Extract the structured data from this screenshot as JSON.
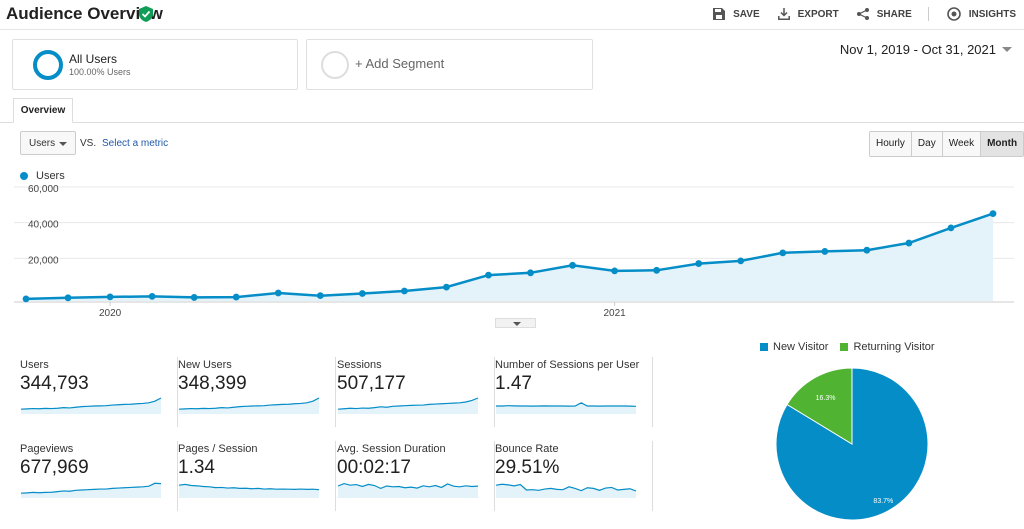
{
  "header": {
    "title": "Audience Overview",
    "actions": {
      "save": "SAVE",
      "export": "EXPORT",
      "share": "SHARE",
      "insights": "INSIGHTS"
    }
  },
  "segments": {
    "active": {
      "name": "All Users",
      "subtitle": "100.00% Users"
    },
    "add_label": "+ Add Segment"
  },
  "date_range": "Nov 1, 2019 - Oct 31, 2021",
  "tabs": {
    "overview": "Overview"
  },
  "controls": {
    "metric": "Users",
    "vs": "VS.",
    "select_metric": "Select a metric",
    "granularity": [
      "Hourly",
      "Day",
      "Week",
      "Month"
    ],
    "granularity_active": "Month"
  },
  "chart_data": {
    "type": "area",
    "series": [
      {
        "name": "Users",
        "values": [
          1200,
          1800,
          2300,
          2600,
          2000,
          2200,
          4500,
          3000,
          4200,
          5600,
          7800,
          14500,
          15800,
          20000,
          16900,
          17200,
          21000,
          22500,
          27000,
          27800,
          28500,
          32500,
          41000,
          49000
        ]
      }
    ],
    "x_tick_labels": [
      "2020",
      "2021"
    ],
    "y_tick_labels": [
      "20,000",
      "40,000",
      "60,000"
    ],
    "yticks": [
      20000,
      40000,
      60000
    ],
    "ylim": [
      0,
      60000
    ],
    "color": "#058dc7",
    "fill": "#e4f2fa",
    "grid": true,
    "legend": "top-left"
  },
  "metrics": [
    {
      "label": "Users",
      "value": "344,793",
      "spark": [
        3,
        3.2,
        3.4,
        3.3,
        3.5,
        3.4,
        3.6,
        4,
        3.8,
        4.2,
        4.6,
        4.8,
        5,
        5.1,
        5.2,
        5.6,
        5.8,
        6,
        6.1,
        6.4,
        6.6,
        7,
        8,
        10
      ]
    },
    {
      "label": "New Users",
      "value": "348,399",
      "spark": [
        3,
        3.2,
        3.4,
        3.3,
        3.5,
        3.4,
        3.6,
        4,
        3.8,
        4.2,
        4.6,
        4.8,
        5,
        5.1,
        5.2,
        5.6,
        5.8,
        6,
        6.1,
        6.4,
        6.6,
        7,
        8,
        10
      ]
    },
    {
      "label": "Sessions",
      "value": "507,177",
      "spark": [
        3,
        3.3,
        3.6,
        3.4,
        3.7,
        3.6,
        4,
        4.5,
        4.2,
        4.8,
        5,
        5.2,
        5.4,
        5.5,
        5.6,
        6,
        6.2,
        6.4,
        6.6,
        6.8,
        7,
        7.5,
        8.5,
        10
      ]
    },
    {
      "label": "Number of Sessions per User",
      "value": "1.47",
      "spark": [
        5,
        5,
        5.2,
        5.1,
        5,
        5,
        4.9,
        5,
        5.1,
        5,
        5,
        5,
        4.9,
        5,
        7,
        5,
        5,
        4.9,
        5,
        5,
        5,
        5,
        4.9,
        4.8
      ]
    },
    {
      "label": "Pageviews",
      "value": "677,969",
      "spark": [
        3,
        3.2,
        3.5,
        3.3,
        3.5,
        3.6,
        4,
        4.4,
        4.2,
        4.8,
        5,
        5.2,
        5.4,
        5.6,
        5.6,
        6,
        6.2,
        6.4,
        6.6,
        6.8,
        7,
        7.4,
        9.2,
        9
      ]
    },
    {
      "label": "Pages / Session",
      "value": "1.34",
      "spark": [
        8,
        8.5,
        7.8,
        7.6,
        7.2,
        7,
        6.5,
        6.6,
        6.2,
        6.4,
        6,
        6.1,
        5.8,
        6,
        5.6,
        5.8,
        5.5,
        5.6,
        5.5,
        5.4,
        5.6,
        5.4,
        5.5,
        5.2
      ]
    },
    {
      "label": "Avg. Session Duration",
      "value": "00:02:17",
      "spark": [
        7.5,
        9,
        8,
        8.4,
        7.2,
        8.5,
        7.8,
        6,
        7.5,
        7,
        7.2,
        6.4,
        6.8,
        6.2,
        7.6,
        7,
        7.8,
        6.6,
        8.8,
        7.4,
        7,
        7.6,
        7.2,
        7.4
      ]
    },
    {
      "label": "Bounce Rate",
      "value": "29.51%",
      "spark": [
        8,
        8.6,
        8.2,
        7.6,
        8.4,
        5,
        5.2,
        4.8,
        5.6,
        6,
        5.4,
        5.2,
        7,
        6,
        4.6,
        6.4,
        6,
        4.8,
        6.2,
        6.6,
        5,
        5.4,
        5.8,
        4.4
      ]
    }
  ],
  "visitor_pie": {
    "type": "pie",
    "labels": [
      "New Visitor",
      "Returning Visitor"
    ],
    "values": [
      83.7,
      16.3
    ],
    "value_labels": [
      "83.7%",
      "16.3%"
    ],
    "colors": [
      "#058dc7",
      "#50b432"
    ]
  }
}
